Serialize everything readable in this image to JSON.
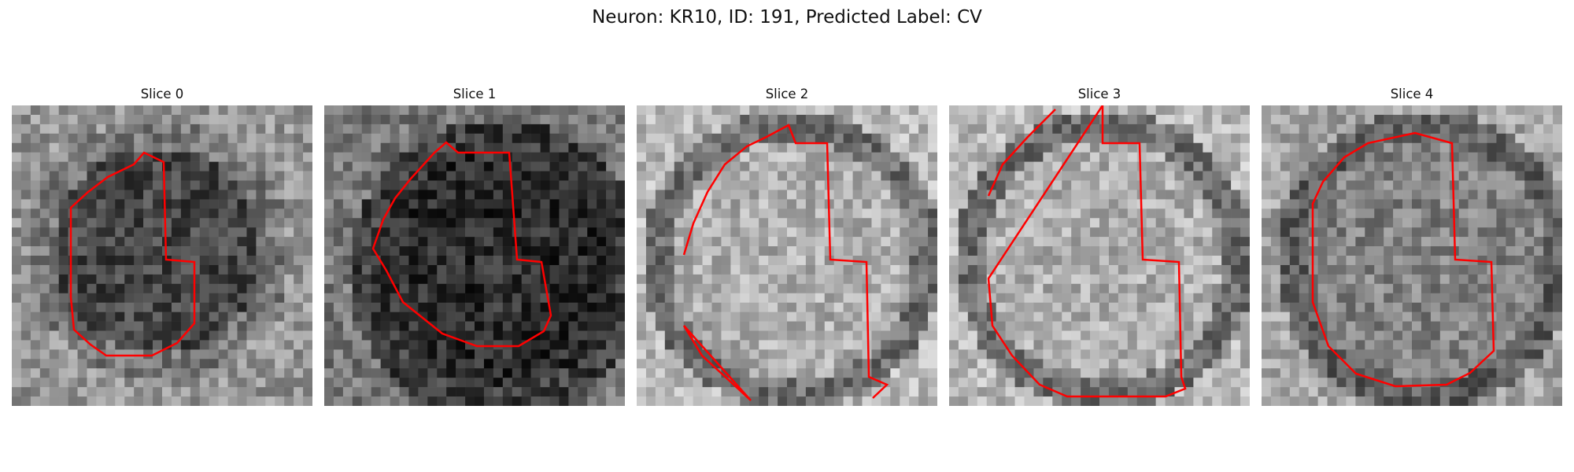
{
  "figure": {
    "title": "Neuron: KR10, ID: 191, Predicted Label: CV"
  },
  "panels": [
    {
      "title": "Slice 0",
      "tone": "mid-dark"
    },
    {
      "title": "Slice 1",
      "tone": "dark"
    },
    {
      "title": "Slice 2",
      "tone": "light"
    },
    {
      "title": "Slice 3",
      "tone": "light"
    },
    {
      "title": "Slice 4",
      "tone": "mid"
    }
  ],
  "colors": {
    "contour": "#ff0000",
    "background": "#ffffff"
  }
}
